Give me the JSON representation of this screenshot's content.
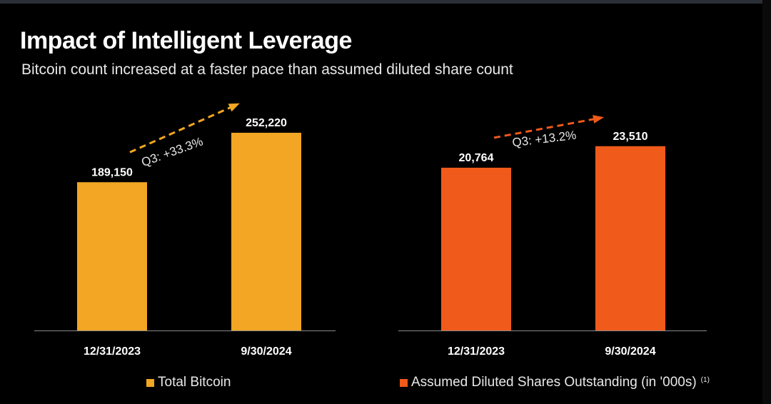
{
  "title": "Impact of Intelligent Leverage",
  "subtitle": "Bitcoin count increased at a faster pace than assumed diluted share count",
  "chart_data": [
    {
      "type": "bar",
      "categories": [
        "12/31/2023",
        "9/30/2024"
      ],
      "values": [
        189150,
        252220
      ],
      "value_labels": [
        "189,150",
        "252,220"
      ],
      "ylim": [
        0,
        285000
      ],
      "color": "#F2A623",
      "legend": "Total Bitcoin",
      "legend_note": "",
      "growth_label": "Q3: +33.3%",
      "growth_color": "#F2A623"
    },
    {
      "type": "bar",
      "categories": [
        "12/31/2023",
        "9/30/2024"
      ],
      "values": [
        20764,
        23510
      ],
      "value_labels": [
        "20,764",
        "23,510"
      ],
      "ylim": [
        0,
        28500
      ],
      "color": "#F05A1A",
      "legend": "Assumed Diluted Shares Outstanding (in '000s)",
      "legend_note": "(1)",
      "growth_label": "Q3: +13.2%",
      "growth_color": "#F05A1A"
    }
  ]
}
